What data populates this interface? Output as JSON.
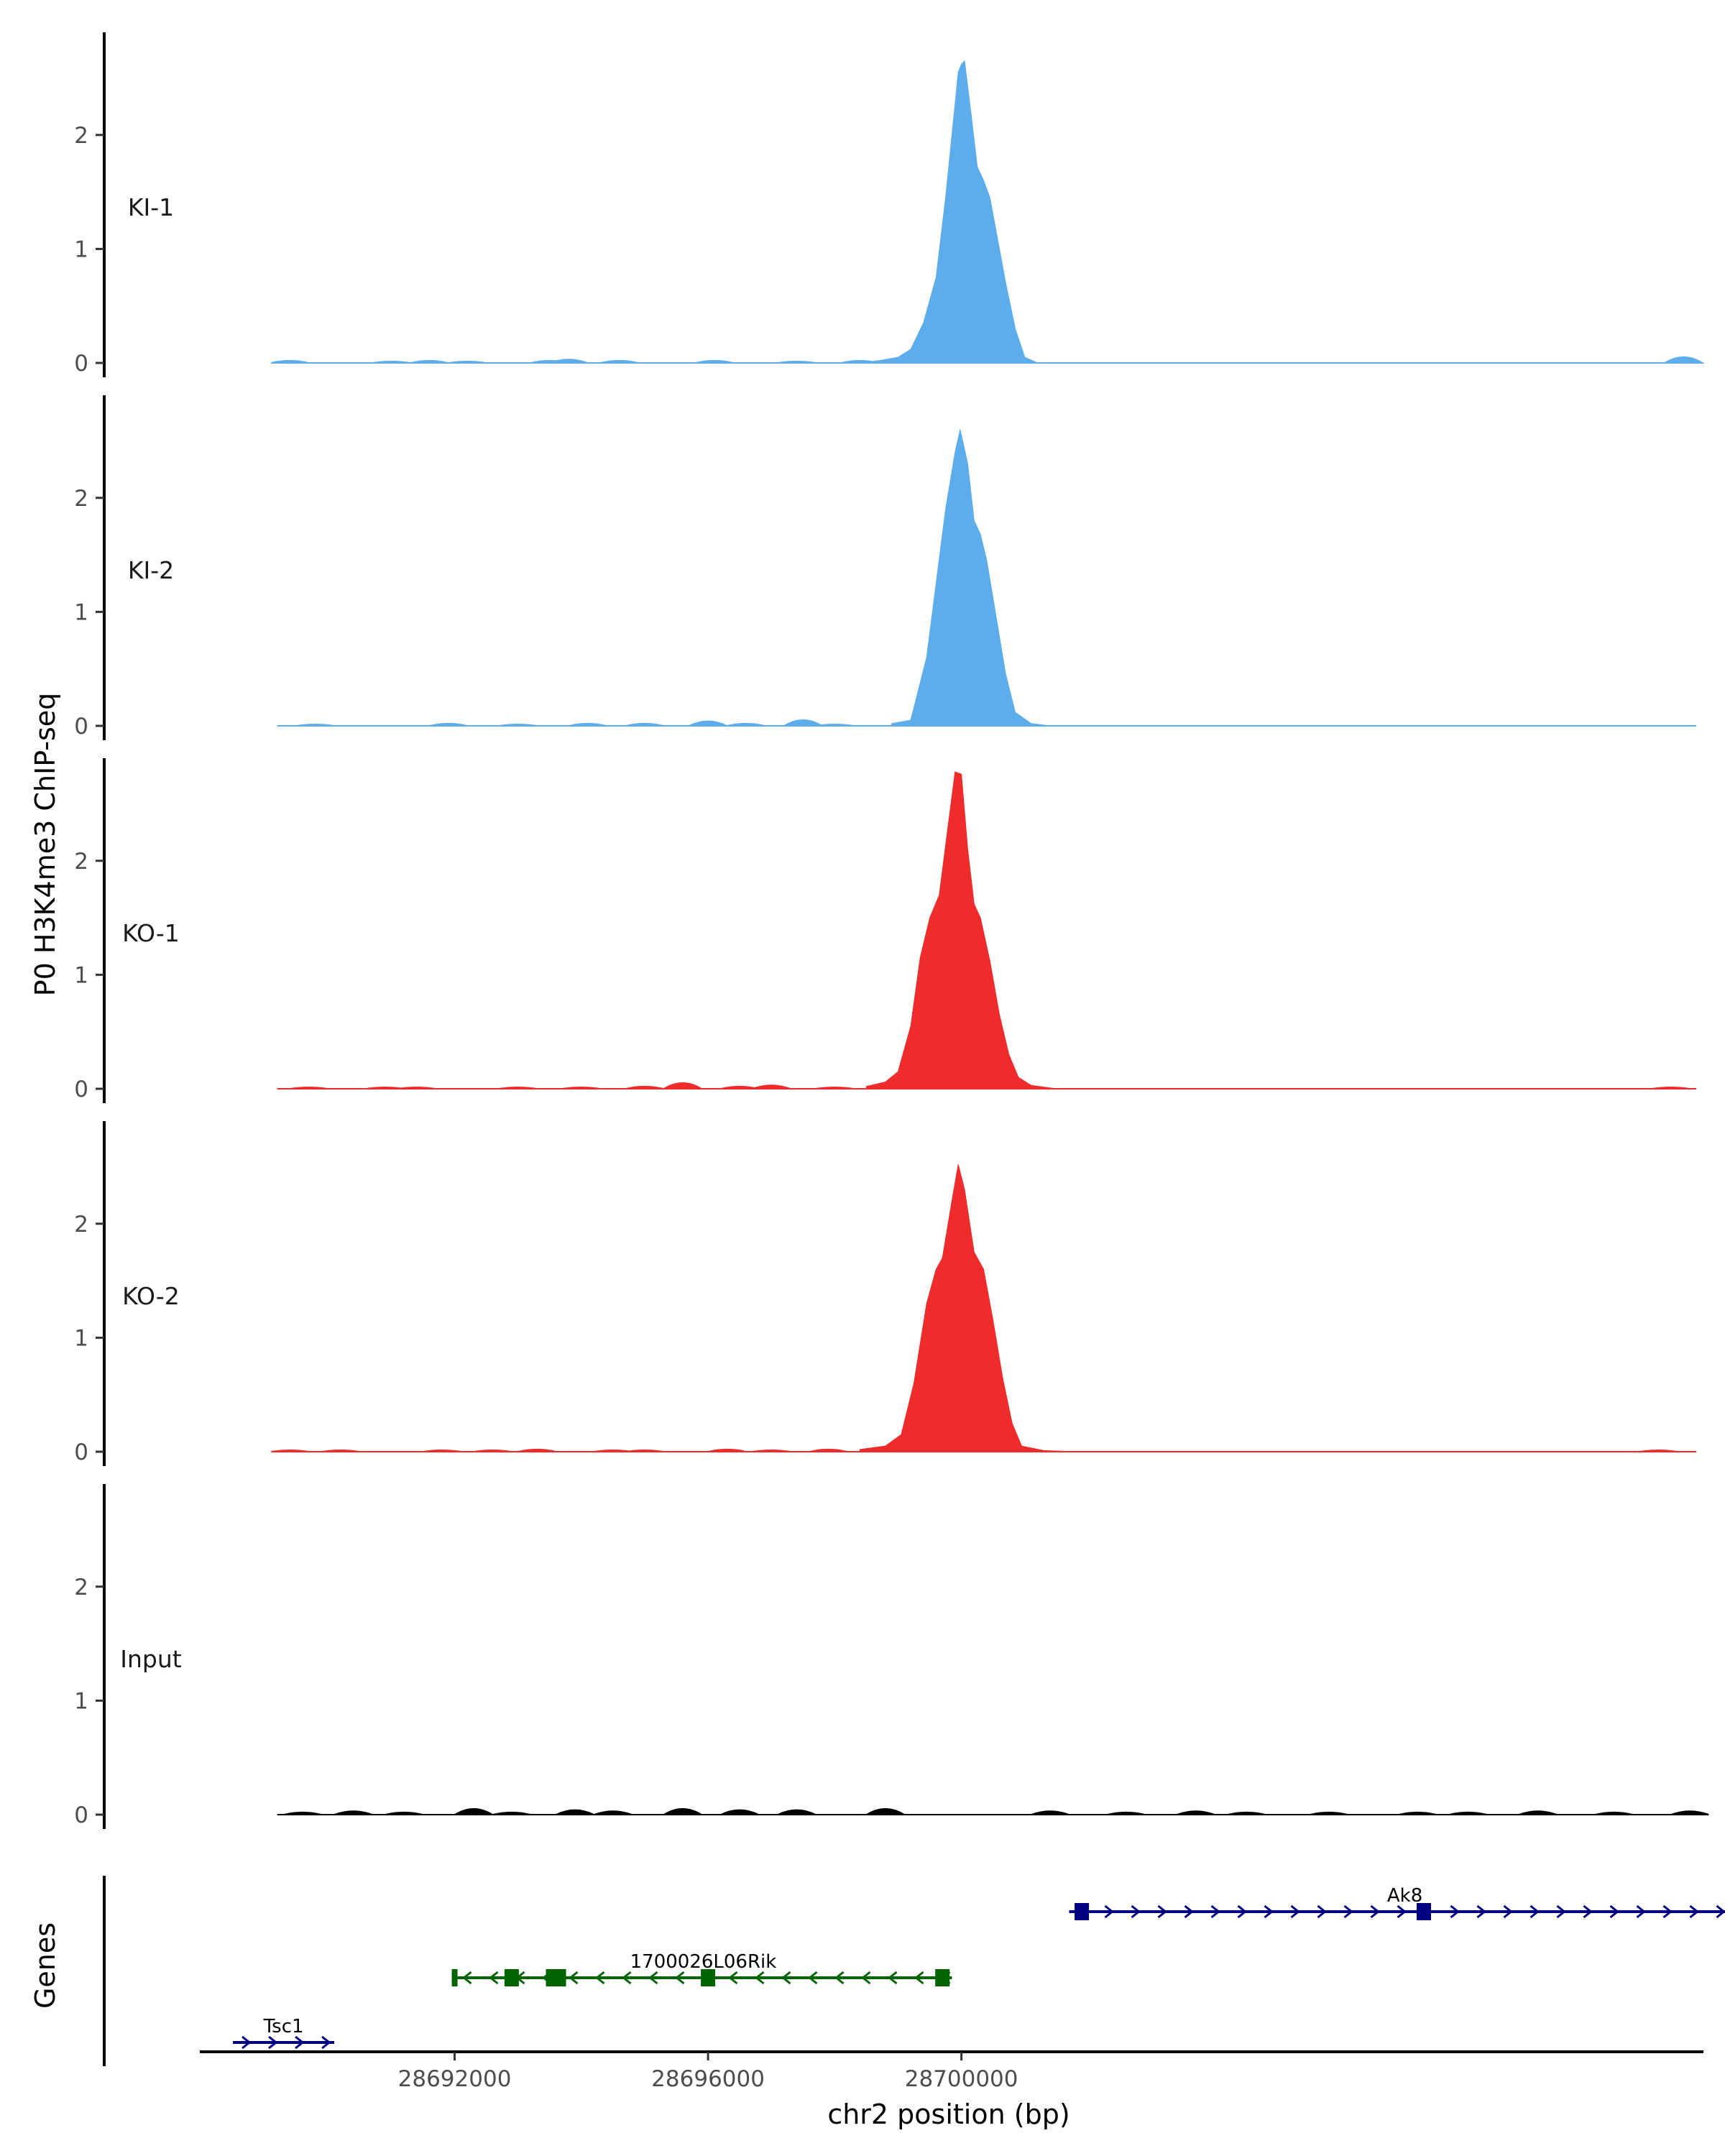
{
  "chart_data": {
    "type": "area",
    "title": "",
    "ylabel": "P0 H3K4me3 ChIP-seq",
    "xlabel": "chr2 position (bp)",
    "xlim": [
      28688000,
      28711600
    ],
    "ylim": [
      0,
      2.9
    ],
    "y_ticks": [
      "0",
      "1",
      "2"
    ],
    "y_tick_values": [
      0,
      1,
      2
    ],
    "x_ticks": [
      "28692000",
      "28696000",
      "28700000"
    ],
    "x_tick_values": [
      28692000,
      28696000,
      28700000
    ],
    "track_range": [
      28689200,
      28711600
    ],
    "tracks": [
      {
        "name": "KI-1",
        "color": "#5DADEC",
        "peak": [
          [
            28698700,
            0.02
          ],
          [
            28699000,
            0.05
          ],
          [
            28699200,
            0.12
          ],
          [
            28699400,
            0.35
          ],
          [
            28699600,
            0.75
          ],
          [
            28699750,
            1.45
          ],
          [
            28699850,
            2.0
          ],
          [
            28699950,
            2.55
          ],
          [
            28700000,
            2.62
          ],
          [
            28700050,
            2.65
          ],
          [
            28700150,
            2.2
          ],
          [
            28700250,
            1.72
          ],
          [
            28700350,
            1.6
          ],
          [
            28700450,
            1.45
          ],
          [
            28700550,
            1.15
          ],
          [
            28700700,
            0.7
          ],
          [
            28700850,
            0.3
          ],
          [
            28701000,
            0.05
          ],
          [
            28701200,
            0.0
          ]
        ],
        "bumps": [
          [
            28689400,
            0.02
          ],
          [
            28691000,
            0.01
          ],
          [
            28691600,
            0.02
          ],
          [
            28692200,
            0.01
          ],
          [
            28693500,
            0.02
          ],
          [
            28693800,
            0.03
          ],
          [
            28694600,
            0.02
          ],
          [
            28696100,
            0.02
          ],
          [
            28697400,
            0.01
          ],
          [
            28698400,
            0.02
          ],
          [
            28698800,
            0.02
          ],
          [
            28711400,
            0.05
          ]
        ]
      },
      {
        "name": "KI-2",
        "color": "#5DADEC",
        "peak": [
          [
            28698900,
            0.02
          ],
          [
            28699200,
            0.05
          ],
          [
            28699450,
            0.6
          ],
          [
            28699600,
            1.25
          ],
          [
            28699750,
            1.9
          ],
          [
            28699900,
            2.4
          ],
          [
            28699980,
            2.6
          ],
          [
            28700100,
            2.3
          ],
          [
            28700200,
            1.8
          ],
          [
            28700300,
            1.68
          ],
          [
            28700400,
            1.45
          ],
          [
            28700550,
            0.95
          ],
          [
            28700700,
            0.45
          ],
          [
            28700850,
            0.12
          ],
          [
            28701100,
            0.02
          ],
          [
            28701400,
            0.0
          ]
        ],
        "bumps": [
          [
            28689800,
            0.01
          ],
          [
            28691900,
            0.02
          ],
          [
            28693000,
            0.01
          ],
          [
            28694100,
            0.02
          ],
          [
            28695000,
            0.02
          ],
          [
            28696000,
            0.04
          ],
          [
            28696600,
            0.02
          ],
          [
            28697500,
            0.05
          ],
          [
            28698000,
            0.01
          ]
        ]
      },
      {
        "name": "KO-1",
        "color": "#EE2C2C",
        "peak": [
          [
            28698500,
            0.02
          ],
          [
            28698800,
            0.06
          ],
          [
            28699000,
            0.15
          ],
          [
            28699200,
            0.55
          ],
          [
            28699350,
            1.15
          ],
          [
            28699500,
            1.5
          ],
          [
            28699650,
            1.7
          ],
          [
            28699800,
            2.35
          ],
          [
            28699900,
            2.78
          ],
          [
            28700000,
            2.76
          ],
          [
            28700100,
            2.1
          ],
          [
            28700200,
            1.62
          ],
          [
            28700300,
            1.5
          ],
          [
            28700450,
            1.12
          ],
          [
            28700600,
            0.65
          ],
          [
            28700750,
            0.3
          ],
          [
            28700900,
            0.1
          ],
          [
            28701100,
            0.03
          ],
          [
            28701500,
            0.0
          ]
        ],
        "bumps": [
          [
            28689700,
            0.01
          ],
          [
            28690900,
            0.01
          ],
          [
            28691400,
            0.01
          ],
          [
            28693000,
            0.01
          ],
          [
            28694000,
            0.01
          ],
          [
            28695000,
            0.02
          ],
          [
            28695600,
            0.05
          ],
          [
            28696500,
            0.02
          ],
          [
            28697000,
            0.03
          ],
          [
            28698000,
            0.01
          ],
          [
            28711200,
            0.01
          ]
        ]
      },
      {
        "name": "KO-2",
        "color": "#EE2C2C",
        "peak": [
          [
            28698400,
            0.02
          ],
          [
            28698800,
            0.05
          ],
          [
            28699050,
            0.15
          ],
          [
            28699250,
            0.6
          ],
          [
            28699450,
            1.3
          ],
          [
            28699600,
            1.6
          ],
          [
            28699700,
            1.7
          ],
          [
            28699850,
            2.2
          ],
          [
            28699950,
            2.52
          ],
          [
            28700050,
            2.3
          ],
          [
            28700200,
            1.75
          ],
          [
            28700350,
            1.6
          ],
          [
            28700500,
            1.15
          ],
          [
            28700650,
            0.65
          ],
          [
            28700800,
            0.25
          ],
          [
            28700950,
            0.05
          ],
          [
            28701300,
            0.01
          ],
          [
            28701800,
            0.0
          ]
        ],
        "bumps": [
          [
            28689400,
            0.005
          ],
          [
            28690200,
            0.01
          ],
          [
            28691800,
            0.01
          ],
          [
            28692600,
            0.01
          ],
          [
            28693300,
            0.02
          ],
          [
            28694500,
            0.01
          ],
          [
            28695000,
            0.01
          ],
          [
            28696300,
            0.02
          ],
          [
            28697000,
            0.01
          ],
          [
            28697900,
            0.02
          ],
          [
            28711000,
            0.01
          ]
        ]
      },
      {
        "name": "Input",
        "color": "#000000",
        "peak": [],
        "bumps": [
          [
            28689600,
            0.02
          ],
          [
            28690400,
            0.03
          ],
          [
            28691200,
            0.02
          ],
          [
            28692300,
            0.05
          ],
          [
            28692900,
            0.02
          ],
          [
            28693900,
            0.04
          ],
          [
            28694500,
            0.03
          ],
          [
            28695600,
            0.05
          ],
          [
            28696500,
            0.04
          ],
          [
            28697400,
            0.04
          ],
          [
            28698800,
            0.05
          ],
          [
            28701400,
            0.03
          ],
          [
            28702600,
            0.02
          ],
          [
            28703700,
            0.03
          ],
          [
            28704500,
            0.02
          ],
          [
            28705800,
            0.02
          ],
          [
            28707200,
            0.02
          ],
          [
            28708000,
            0.02
          ],
          [
            28709100,
            0.03
          ],
          [
            28710300,
            0.02
          ],
          [
            28711500,
            0.03
          ]
        ]
      }
    ],
    "genes_panel_label": "Genes",
    "genes": [
      {
        "name": "Ak8",
        "color": "#000080",
        "strand": "+",
        "start": 28701700,
        "end": 28712300,
        "exons": [
          28701900,
          28707300
        ],
        "row": 0
      },
      {
        "name": "1700026L06Rik",
        "color": "#006400",
        "strand": "-",
        "start": 28692000,
        "end": 28699850,
        "exons": [
          28692000,
          28692900,
          28693600,
          28696000,
          28699700
        ],
        "row": 1
      },
      {
        "name": "Tsc1",
        "color": "#000080",
        "strand": "+",
        "start": 28688500,
        "end": 28690100,
        "exons": [],
        "row": 2
      }
    ]
  }
}
